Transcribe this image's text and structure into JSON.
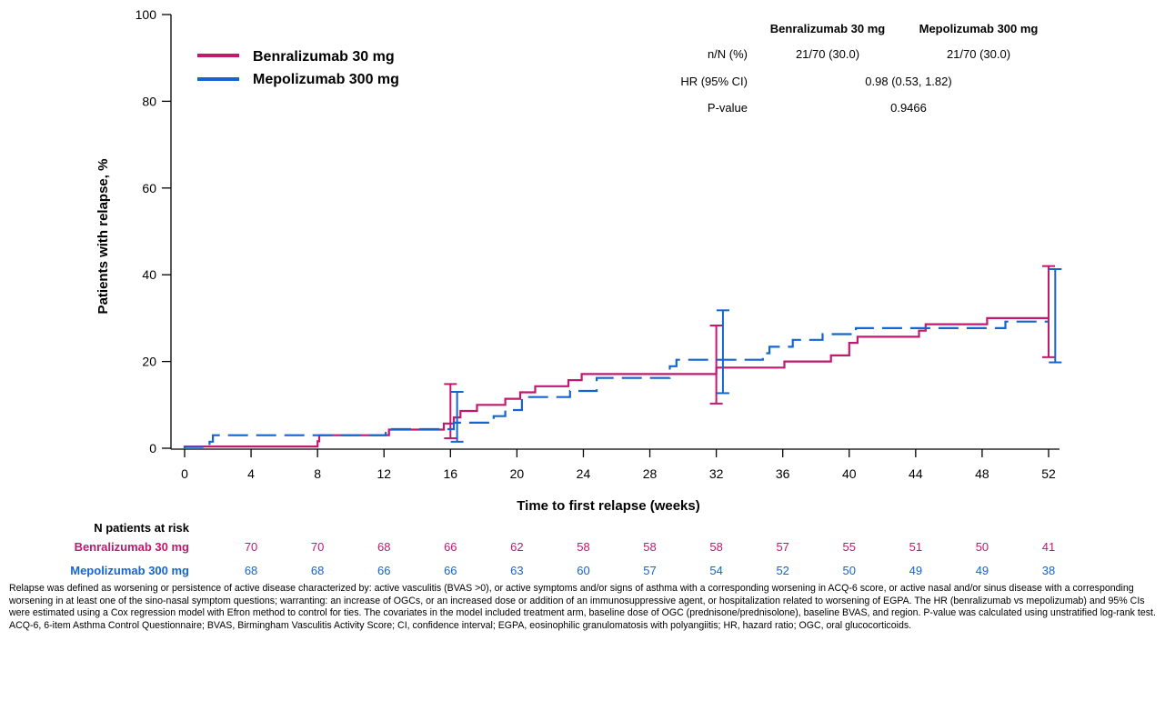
{
  "chart_data": {
    "type": "line",
    "subtype": "kaplan-meier-step",
    "xlabel": "Time to first relapse (weeks)",
    "ylabel": "Patients with relapse, %",
    "xlim": [
      0,
      52
    ],
    "ylim": [
      0,
      100
    ],
    "xticks": [
      0,
      4,
      8,
      12,
      16,
      20,
      24,
      28,
      32,
      36,
      40,
      44,
      48,
      52
    ],
    "yticks": [
      0,
      20,
      40,
      60,
      80,
      100
    ],
    "grid": false,
    "legend_position": "top-left",
    "series": [
      {
        "name": "Benralizumab 30 mg",
        "color": "#C0196E",
        "style": "solid",
        "steps": [
          [
            0,
            0
          ],
          [
            0,
            0.4
          ],
          [
            8,
            0.4
          ],
          [
            8,
            1.6
          ],
          [
            8.1,
            1.6
          ],
          [
            8.1,
            3.0
          ],
          [
            12.3,
            3.0
          ],
          [
            12.3,
            4.3
          ],
          [
            15.6,
            4.3
          ],
          [
            15.6,
            5.7
          ],
          [
            16.2,
            5.7
          ],
          [
            16.2,
            7.1
          ],
          [
            16.6,
            7.1
          ],
          [
            16.6,
            8.6
          ],
          [
            17.6,
            8.6
          ],
          [
            17.6,
            10.0
          ],
          [
            19.3,
            10.0
          ],
          [
            19.3,
            11.4
          ],
          [
            20.2,
            11.4
          ],
          [
            20.2,
            12.9
          ],
          [
            21.1,
            12.9
          ],
          [
            21.1,
            14.3
          ],
          [
            23.1,
            14.3
          ],
          [
            23.1,
            15.7
          ],
          [
            23.9,
            15.7
          ],
          [
            23.9,
            17.1
          ],
          [
            32.0,
            17.1
          ],
          [
            32.0,
            18.6
          ],
          [
            36.1,
            18.6
          ],
          [
            36.1,
            20.0
          ],
          [
            38.9,
            20.0
          ],
          [
            38.9,
            21.4
          ],
          [
            40.0,
            21.4
          ],
          [
            40.0,
            24.3
          ],
          [
            40.5,
            24.3
          ],
          [
            40.5,
            25.7
          ],
          [
            44.2,
            25.7
          ],
          [
            44.2,
            27.1
          ],
          [
            44.6,
            27.1
          ],
          [
            44.6,
            28.6
          ],
          [
            48.3,
            28.6
          ],
          [
            48.3,
            30.0
          ],
          [
            52,
            30.0
          ]
        ],
        "ci_bars": [
          {
            "x": 16,
            "lower": 2.3,
            "upper": 14.8
          },
          {
            "x": 32,
            "lower": 10.3,
            "upper": 28.3
          },
          {
            "x": 52,
            "lower": 21.0,
            "upper": 42.0
          }
        ]
      },
      {
        "name": "Mepolizumab 300 mg",
        "color": "#1565D0",
        "style": "dashed",
        "steps": [
          [
            0,
            0
          ],
          [
            0,
            0.3
          ],
          [
            1.5,
            0.3
          ],
          [
            1.5,
            1.5
          ],
          [
            1.7,
            1.5
          ],
          [
            1.7,
            3.0
          ],
          [
            12.1,
            3.0
          ],
          [
            12.1,
            4.4
          ],
          [
            16.2,
            4.4
          ],
          [
            16.2,
            5.9
          ],
          [
            18.6,
            5.9
          ],
          [
            18.6,
            7.4
          ],
          [
            19.3,
            7.4
          ],
          [
            19.3,
            8.8
          ],
          [
            20.3,
            8.8
          ],
          [
            20.3,
            11.8
          ],
          [
            23.2,
            11.8
          ],
          [
            23.2,
            13.2
          ],
          [
            24.8,
            13.2
          ],
          [
            24.8,
            16.2
          ],
          [
            26.0,
            16.2
          ],
          [
            29.2,
            16.2
          ],
          [
            29.2,
            18.9
          ],
          [
            29.6,
            18.9
          ],
          [
            29.6,
            20.4
          ],
          [
            34.8,
            20.4
          ],
          [
            34.8,
            21.9
          ],
          [
            35.2,
            21.9
          ],
          [
            35.2,
            23.4
          ],
          [
            36.6,
            23.4
          ],
          [
            36.6,
            25.0
          ],
          [
            38.4,
            25.0
          ],
          [
            38.4,
            26.3
          ],
          [
            40.4,
            26.3
          ],
          [
            40.4,
            27.7
          ],
          [
            49.4,
            27.7
          ],
          [
            49.4,
            29.2
          ],
          [
            52,
            29.2
          ]
        ],
        "ci_bars": [
          {
            "x": 16.4,
            "lower": 1.5,
            "upper": 13.0
          },
          {
            "x": 32.4,
            "lower": 12.7,
            "upper": 31.8
          },
          {
            "x": 52.4,
            "lower": 19.8,
            "upper": 41.3
          }
        ]
      }
    ],
    "stats_table": {
      "col_headers": [
        "Benralizumab 30 mg",
        "Mepolizumab 300 mg"
      ],
      "rows": [
        {
          "label": "n/N (%)",
          "values": [
            "21/70 (30.0)",
            "21/70 (30.0)"
          ]
        },
        {
          "label": "HR (95% CI)",
          "value": "0.98 (0.53, 1.82)"
        },
        {
          "label": "P-value",
          "value": "0.9466"
        }
      ]
    },
    "at_risk": {
      "title": "N patients at risk",
      "weeks": [
        4,
        8,
        12,
        16,
        20,
        24,
        28,
        32,
        36,
        40,
        44,
        48,
        52
      ],
      "rows": [
        {
          "label": "Benralizumab 30 mg",
          "color": "#C0196E",
          "values": [
            70,
            70,
            68,
            66,
            62,
            58,
            58,
            58,
            57,
            55,
            51,
            50,
            41
          ]
        },
        {
          "label": "Mepolizumab 300 mg",
          "color": "#1565D0",
          "values": [
            68,
            68,
            66,
            66,
            63,
            60,
            57,
            54,
            52,
            50,
            49,
            49,
            38
          ]
        }
      ]
    }
  },
  "footnotes": {
    "definition": "Relapse was defined as worsening or persistence of active disease characterized by: active vasculitis (BVAS >0), or active symptoms and/or signs of asthma with a corresponding worsening in ACQ-6 score, or active nasal and/or sinus disease with a corresponding worsening in at least one of the sino-nasal symptom questions; warranting: an increase of OGCs, or an increased dose or addition of an immunosuppressive agent, or hospitalization related to worsening of EGPA. The HR (benralizumab vs mepolizumab) and 95% CIs were estimated using a Cox regression model with Efron method to control for ties. The covariates in the model included treatment arm, baseline dose of OGC (prednisone/prednisolone), baseline BVAS, and region. P-value was calculated using unstratified log-rank test.",
    "abbreviations": "ACQ-6, 6-item Asthma Control Questionnaire; BVAS, Birmingham Vasculitis Activity Score; CI, confidence interval; EGPA, eosinophilic granulomatosis with polyangiitis; HR, hazard ratio; OGC, oral glucocorticoids."
  }
}
